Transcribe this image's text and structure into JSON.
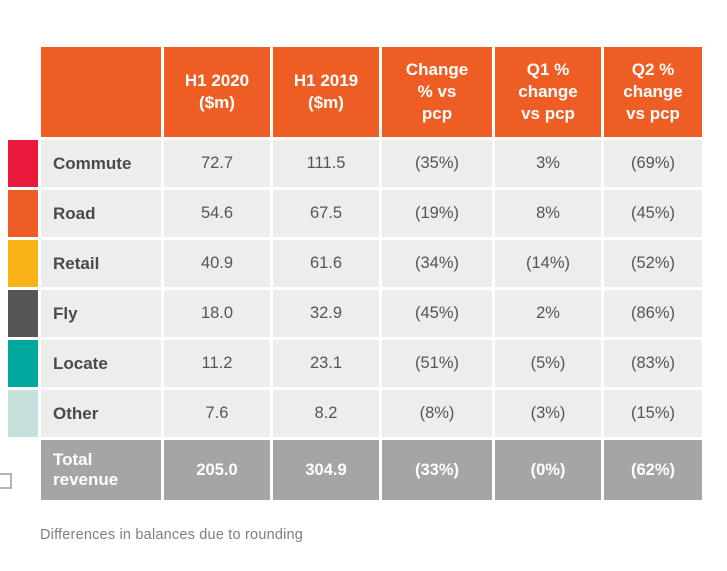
{
  "palette": {
    "header_orange": "#EE5E24",
    "row_background": "#EDEDEB",
    "total_gray": "#A5A5A5",
    "label_text": "#4A4A4E",
    "value_text": "#55555A",
    "footnote_text": "#7F7F80"
  },
  "chart_data": {
    "type": "table",
    "columns": [
      "",
      "H1 2020\n($m)",
      "H1 2019\n($m)",
      "Change\n% vs\npcp",
      "Q1 %\nchange\nvs pcp",
      "Q2 %\nchange\nvs pcp"
    ],
    "rows": [
      {
        "label": "Commute",
        "swatch": "#E8193C",
        "values": [
          "72.7",
          "111.5",
          "(35%)",
          "3%",
          "(69%)"
        ]
      },
      {
        "label": "Road",
        "swatch": "#EE5E24",
        "values": [
          "54.6",
          "67.5",
          "(19%)",
          "8%",
          "(45%)"
        ]
      },
      {
        "label": "Retail",
        "swatch": "#F9B217",
        "values": [
          "40.9",
          "61.6",
          "(34%)",
          "(14%)",
          "(52%)"
        ]
      },
      {
        "label": "Fly",
        "swatch": "#565659",
        "values": [
          "18.0",
          "32.9",
          "(45%)",
          "2%",
          "(86%)"
        ]
      },
      {
        "label": "Locate",
        "swatch": "#00A89C",
        "values": [
          "11.2",
          "23.1",
          "(51%)",
          "(5%)",
          "(83%)"
        ]
      },
      {
        "label": "Other",
        "swatch": "#C7E0DD",
        "values": [
          "7.6",
          "8.2",
          "(8%)",
          "(3%)",
          "(15%)"
        ]
      }
    ],
    "total": {
      "label": "Total revenue",
      "values": [
        "205.0",
        "304.9",
        "(33%)",
        "(0%)",
        "(62%)"
      ]
    }
  },
  "footnote": "Differences in balances due to rounding"
}
